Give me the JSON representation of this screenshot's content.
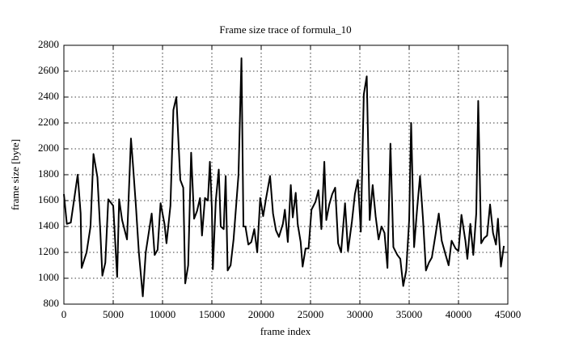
{
  "chart_data": {
    "type": "line",
    "title": "Frame size trace of formula_10",
    "x_label": "frame index",
    "y_label": "frame size [byte]",
    "xlim": [
      0,
      45000
    ],
    "ylim": [
      800,
      2800
    ],
    "xticks": [
      0,
      5000,
      10000,
      15000,
      20000,
      25000,
      30000,
      35000,
      40000,
      45000
    ],
    "yticks": [
      800,
      1000,
      1200,
      1400,
      1600,
      1800,
      2000,
      2200,
      2400,
      2600,
      2800
    ],
    "grid": true,
    "series": [
      {
        "color": "#000000",
        "x": [
          0,
          300,
          700,
          1400,
          1700,
          1800,
          2300,
          2700,
          3000,
          3400,
          3700,
          3900,
          4200,
          4500,
          5000,
          5400,
          5600,
          5900,
          6400,
          6800,
          7000,
          7300,
          7600,
          8000,
          8300,
          8600,
          8900,
          9200,
          9500,
          9800,
          10200,
          10400,
          10800,
          11100,
          11400,
          11800,
          12100,
          12300,
          12600,
          12900,
          13200,
          13500,
          13800,
          14000,
          14300,
          14600,
          14800,
          15000,
          15100,
          15400,
          15700,
          15900,
          16200,
          16400,
          16600,
          16900,
          17200,
          17500,
          17700,
          18000,
          18200,
          18400,
          18700,
          19000,
          19300,
          19600,
          19900,
          20200,
          20500,
          20900,
          21200,
          21500,
          21800,
          22200,
          22400,
          22700,
          23000,
          23200,
          23500,
          23700,
          24000,
          24200,
          24500,
          24800,
          25100,
          25500,
          25800,
          26100,
          26400,
          26600,
          26900,
          27200,
          27500,
          27800,
          28100,
          28500,
          28800,
          29200,
          29500,
          29800,
          30100,
          30400,
          30700,
          31000,
          31300,
          31600,
          31900,
          32200,
          32500,
          32800,
          33100,
          33400,
          33800,
          34100,
          34400,
          34700,
          35000,
          35200,
          35500,
          35800,
          36100,
          36400,
          36700,
          37000,
          37300,
          37700,
          38000,
          38300,
          38700,
          39000,
          39300,
          39700,
          40000,
          40300,
          40700,
          40900,
          41200,
          41500,
          41800,
          42000,
          42300,
          42600,
          42900,
          43200,
          43500,
          43800,
          44000,
          44300,
          44600
        ],
        "values": [
          1650,
          1420,
          1430,
          1800,
          1500,
          1080,
          1200,
          1400,
          1960,
          1780,
          1350,
          1020,
          1120,
          1610,
          1560,
          1010,
          1610,
          1450,
          1300,
          2080,
          1880,
          1560,
          1200,
          860,
          1200,
          1350,
          1500,
          1180,
          1220,
          1580,
          1420,
          1270,
          1560,
          2300,
          2400,
          1760,
          1700,
          960,
          1100,
          1970,
          1460,
          1520,
          1620,
          1330,
          1620,
          1600,
          1900,
          1540,
          1070,
          1600,
          1840,
          1400,
          1380,
          1790,
          1060,
          1100,
          1300,
          1600,
          1800,
          2700,
          1400,
          1400,
          1260,
          1280,
          1380,
          1200,
          1620,
          1480,
          1620,
          1790,
          1500,
          1370,
          1320,
          1420,
          1530,
          1280,
          1720,
          1470,
          1660,
          1420,
          1280,
          1090,
          1230,
          1230,
          1530,
          1590,
          1680,
          1380,
          1900,
          1450,
          1570,
          1650,
          1700,
          1270,
          1200,
          1580,
          1210,
          1440,
          1650,
          1760,
          1360,
          2420,
          2560,
          1450,
          1720,
          1480,
          1300,
          1400,
          1350,
          1080,
          2040,
          1240,
          1180,
          1150,
          940,
          1060,
          1450,
          2200,
          1240,
          1530,
          1790,
          1460,
          1060,
          1120,
          1160,
          1350,
          1500,
          1290,
          1180,
          1100,
          1290,
          1230,
          1210,
          1490,
          1290,
          1150,
          1420,
          1180,
          1500,
          2370,
          1270,
          1310,
          1330,
          1570,
          1350,
          1260,
          1460,
          1090,
          1250
        ]
      }
    ]
  }
}
